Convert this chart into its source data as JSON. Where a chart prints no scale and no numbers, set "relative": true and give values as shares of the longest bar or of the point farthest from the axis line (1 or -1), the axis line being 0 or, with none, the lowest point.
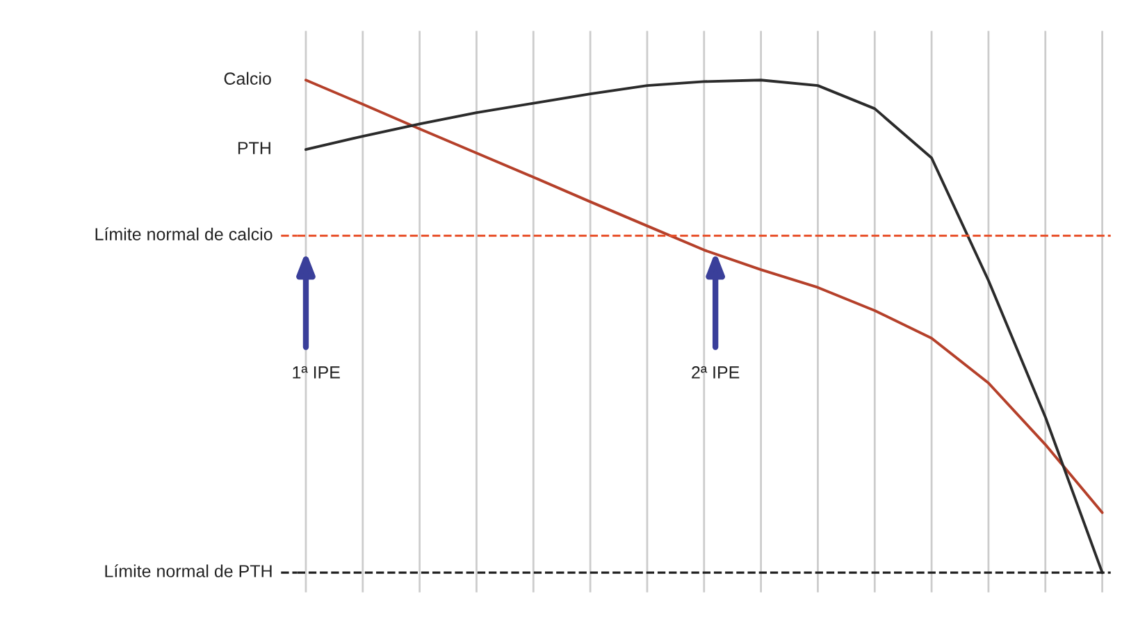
{
  "chart_data": {
    "type": "line",
    "relative": true,
    "categories": [
      null,
      null,
      null,
      null,
      null,
      null,
      null,
      null,
      null,
      null,
      null,
      null,
      null,
      null,
      null
    ],
    "series": [
      {
        "name": "Calcio",
        "color": "#b5402a",
        "values": [
          1.0,
          0.951,
          0.901,
          0.852,
          0.803,
          0.753,
          0.704,
          0.655,
          0.615,
          0.579,
          0.532,
          0.476,
          0.385,
          0.26,
          0.122
        ]
      },
      {
        "name": "PTH",
        "color": "#2b2b2b",
        "values": [
          0.859,
          0.886,
          0.911,
          0.934,
          0.953,
          0.972,
          0.989,
          0.997,
          1.0,
          0.989,
          0.942,
          0.842,
          0.593,
          0.316,
          0.0
        ]
      }
    ],
    "ref_lines": [
      {
        "axis": "y",
        "value": 0.684,
        "label": "Límite normal de calcio",
        "color": "#e8502a",
        "line_style": "dashed"
      },
      {
        "axis": "y",
        "value": 0.0,
        "label": "Límite normal de PTH",
        "color": "#222222",
        "line_style": "dashed"
      }
    ],
    "annotations": [
      "1ª IPE",
      "2ª IPE"
    ],
    "grid": "x",
    "legend": false
  }
}
